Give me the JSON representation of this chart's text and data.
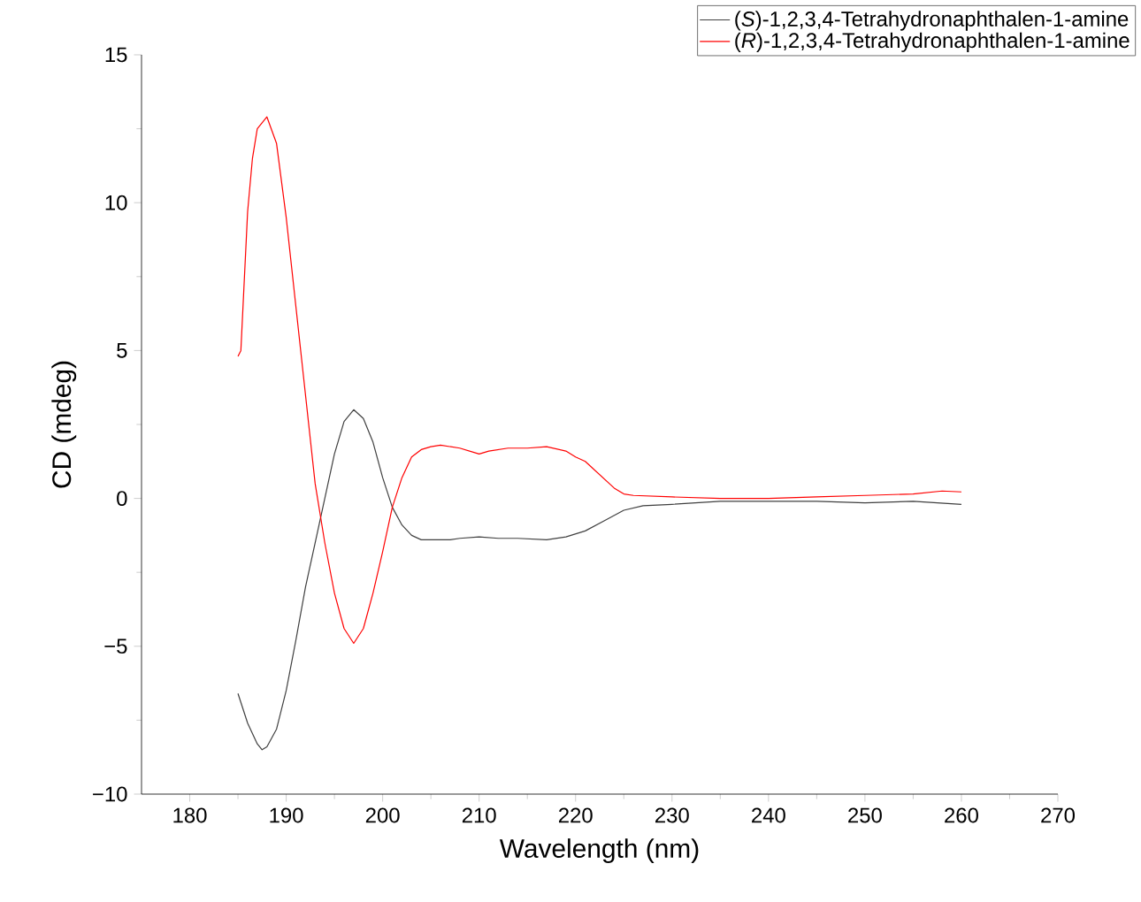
{
  "chart_data": {
    "type": "line",
    "xlabel": "Wavelength (nm)",
    "ylabel": "CD (mdeg)",
    "xlim": [
      175,
      270
    ],
    "ylim": [
      -10,
      15
    ],
    "xticks": [
      180,
      190,
      200,
      210,
      220,
      230,
      240,
      250,
      260,
      270
    ],
    "yticks": [
      {
        "value": -10,
        "label": "−10"
      },
      {
        "value": -5,
        "label": "−5"
      },
      0,
      5,
      10,
      15
    ],
    "legend": "top right",
    "series": [
      {
        "name": "(*S*)-1,2,3,4-Tetrahydronaphthalen-1-amine",
        "color": "#404040",
        "x": [
          185,
          186,
          187,
          187.5,
          188,
          189,
          190,
          191,
          192,
          193,
          194,
          195,
          196,
          197,
          198,
          199,
          200,
          201,
          202,
          203,
          204,
          205,
          207,
          208,
          210,
          212,
          214,
          217,
          219,
          221,
          223,
          225,
          227,
          230,
          235,
          240,
          245,
          250,
          255,
          260
        ],
        "values": [
          -6.6,
          -7.6,
          -8.3,
          -8.5,
          -8.4,
          -7.8,
          -6.5,
          -4.8,
          -3.0,
          -1.5,
          0,
          1.5,
          2.6,
          3.0,
          2.7,
          1.9,
          0.7,
          -0.3,
          -0.9,
          -1.25,
          -1.4,
          -1.4,
          -1.4,
          -1.35,
          -1.3,
          -1.35,
          -1.35,
          -1.4,
          -1.3,
          -1.1,
          -0.75,
          -0.4,
          -0.25,
          -0.2,
          -0.1,
          -0.1,
          -0.1,
          -0.15,
          -0.1,
          -0.2
        ]
      },
      {
        "name": "(*R*)-1,2,3,4-Tetrahydronaphthalen-1-amine",
        "color": "#ff0000",
        "x": [
          185,
          185.3,
          186,
          186.5,
          187,
          188,
          189,
          190,
          191,
          192,
          193,
          194,
          195,
          196,
          197,
          198,
          199,
          200,
          201,
          202,
          203,
          204,
          205,
          206,
          208,
          210,
          211,
          213,
          215,
          217,
          219,
          220,
          221,
          222,
          223,
          224,
          225,
          226,
          230,
          235,
          240,
          245,
          250,
          255,
          258,
          260
        ],
        "values": [
          4.8,
          5.0,
          9.7,
          11.5,
          12.5,
          12.9,
          12.0,
          9.5,
          6.5,
          3.5,
          0.5,
          -1.5,
          -3.2,
          -4.4,
          -4.9,
          -4.4,
          -3.2,
          -1.8,
          -0.3,
          0.7,
          1.4,
          1.65,
          1.75,
          1.8,
          1.7,
          1.5,
          1.6,
          1.7,
          1.7,
          1.75,
          1.6,
          1.4,
          1.25,
          0.95,
          0.65,
          0.35,
          0.15,
          0.1,
          0.05,
          0.0,
          0.0,
          0.05,
          0.1,
          0.15,
          0.25,
          0.22
        ]
      }
    ]
  }
}
